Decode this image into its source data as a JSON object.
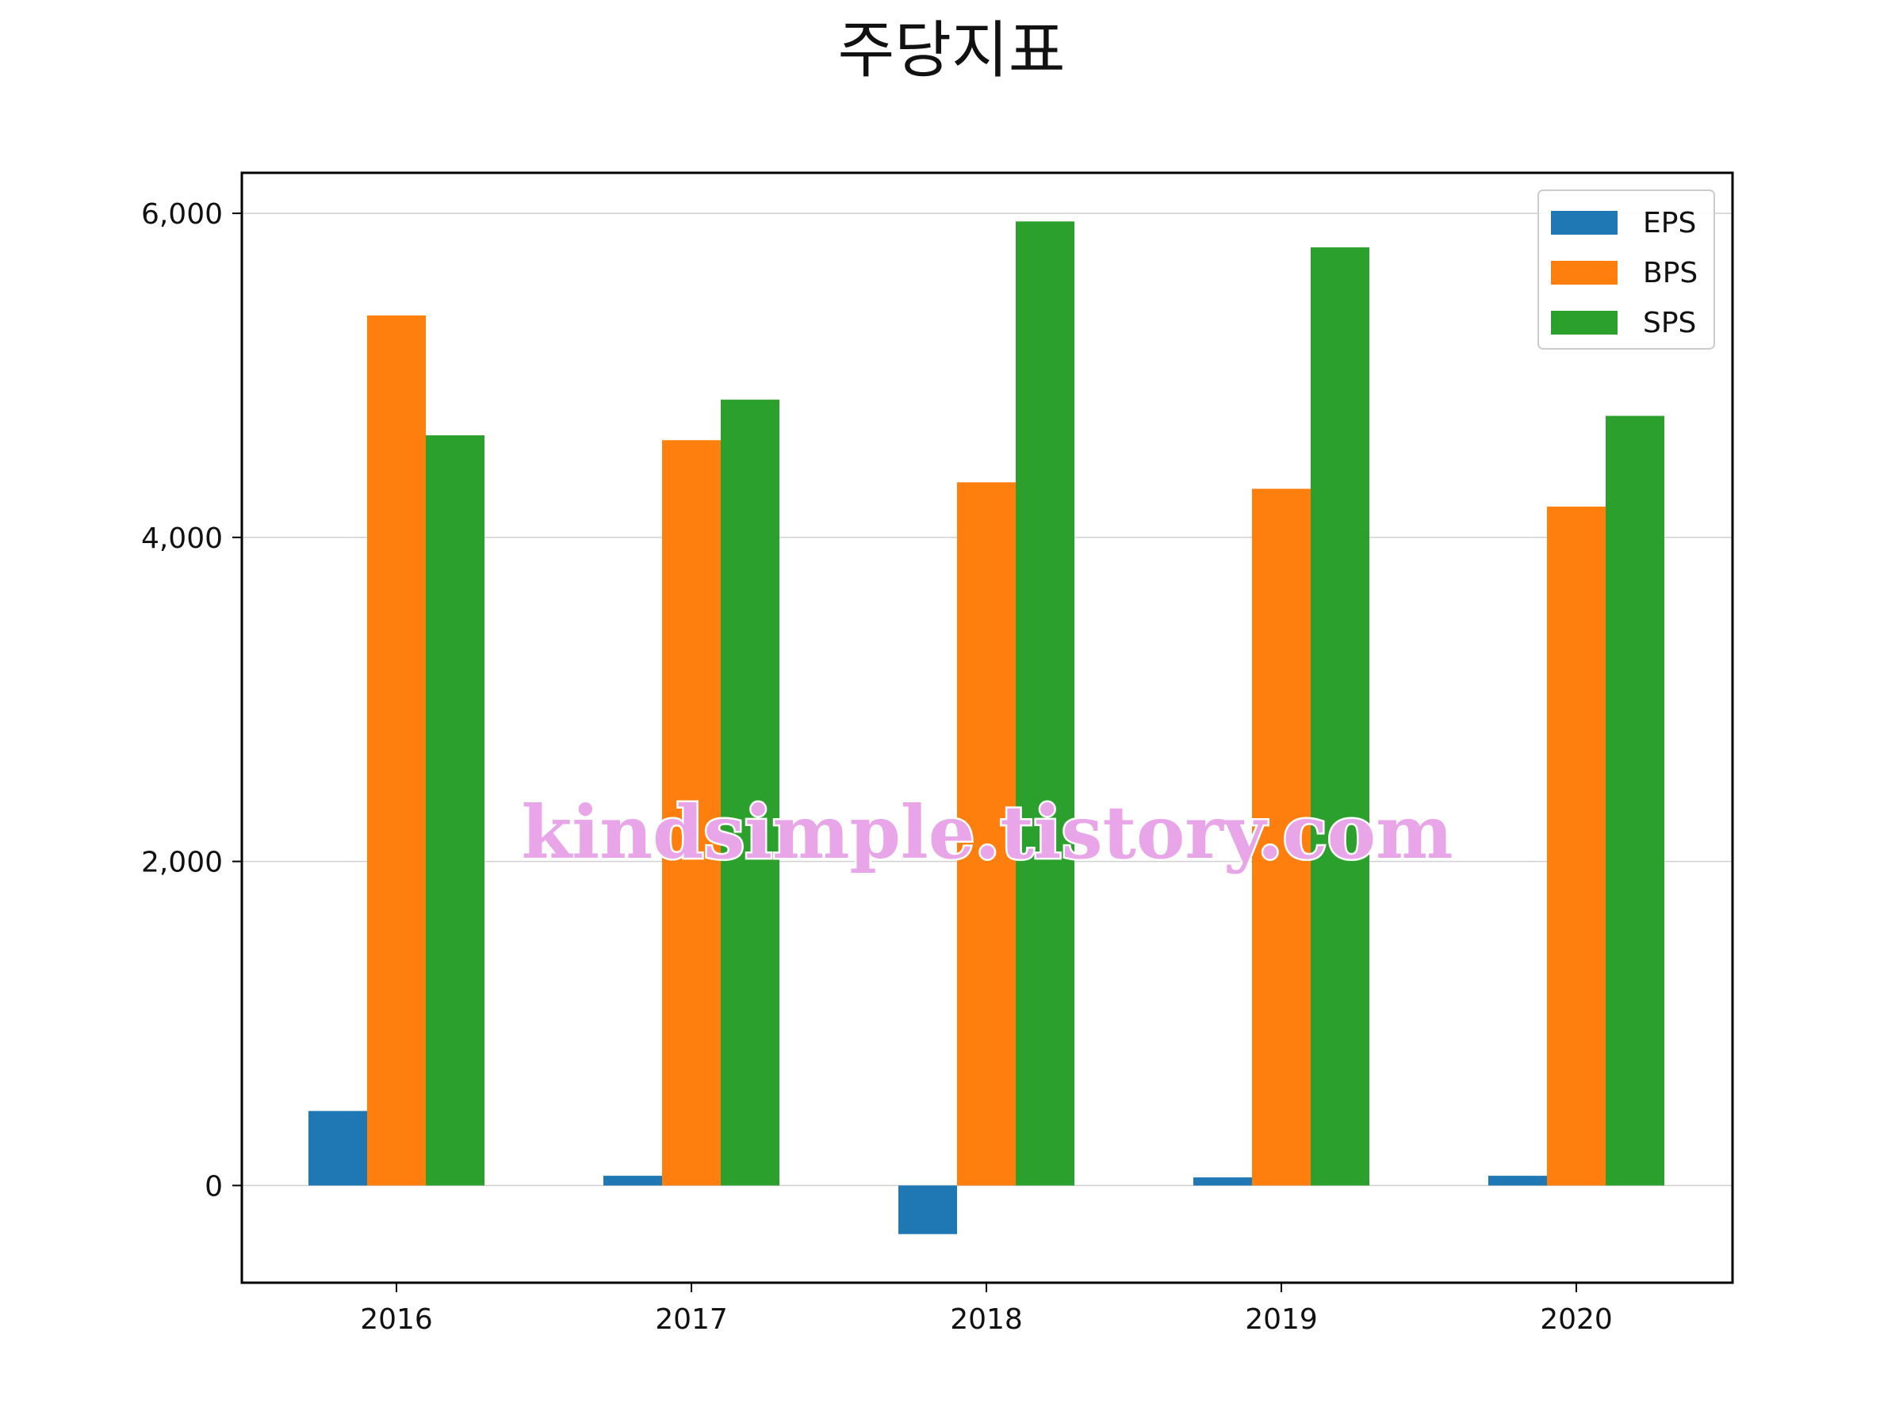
{
  "chart_data": {
    "type": "bar",
    "title": "주당지표",
    "categories": [
      "2016",
      "2017",
      "2018",
      "2019",
      "2020"
    ],
    "series": [
      {
        "name": "EPS",
        "color": "#1f77b4",
        "values": [
          460,
          60,
          -300,
          50,
          60
        ]
      },
      {
        "name": "BPS",
        "color": "#ff7f0e",
        "values": [
          5370,
          4600,
          4340,
          4300,
          4190
        ]
      },
      {
        "name": "SPS",
        "color": "#2ca02c",
        "values": [
          4630,
          4850,
          5950,
          5790,
          4750
        ]
      }
    ],
    "ylim": [
      -600,
      6250
    ],
    "yticks": [
      0,
      2000,
      4000,
      6000
    ],
    "ytick_labels": [
      "0",
      "2,000",
      "4,000",
      "6,000"
    ],
    "grid": "horizontal",
    "legend_position": "top-right",
    "watermark": "kindsimple.tistory.com"
  }
}
